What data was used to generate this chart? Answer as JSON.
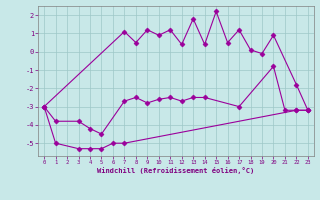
{
  "xlabel": "Windchill (Refroidissement éolien,°C)",
  "line_color": "#9b009b",
  "bg_color": "#c8e8e8",
  "grid_color": "#9ec8c8",
  "ylim": [
    -5.7,
    2.5
  ],
  "xlim": [
    -0.5,
    23.5
  ],
  "yticks": [
    -5,
    -4,
    -3,
    -2,
    -1,
    0,
    1,
    2
  ],
  "xticks": [
    0,
    1,
    2,
    3,
    4,
    5,
    6,
    7,
    8,
    9,
    10,
    11,
    12,
    13,
    14,
    15,
    16,
    17,
    18,
    19,
    20,
    21,
    22,
    23
  ],
  "line_bottom_x": [
    0,
    1,
    3,
    4,
    5,
    6,
    7,
    22,
    23
  ],
  "line_bottom_y": [
    -3.0,
    -5.0,
    -5.3,
    -5.3,
    -5.3,
    -5.0,
    -5.0,
    -3.2,
    -3.2
  ],
  "line_mid_x": [
    0,
    1,
    3,
    4,
    5,
    7,
    8,
    9,
    10,
    11,
    12,
    13,
    14,
    17,
    20,
    21,
    22,
    23
  ],
  "line_mid_y": [
    -3.0,
    -3.8,
    -3.8,
    -4.2,
    -4.5,
    -2.7,
    -2.5,
    -2.8,
    -2.6,
    -2.5,
    -2.7,
    -2.5,
    -2.5,
    -3.0,
    -0.8,
    -3.2,
    -3.2,
    -3.2
  ],
  "line_top_x": [
    0,
    7,
    8,
    9,
    10,
    11,
    12,
    13,
    14,
    15,
    16,
    17,
    18,
    19,
    20,
    22,
    23
  ],
  "line_top_y": [
    -3.0,
    1.1,
    0.5,
    1.2,
    0.9,
    1.2,
    0.4,
    1.8,
    0.4,
    2.2,
    0.5,
    1.2,
    0.1,
    -0.1,
    0.9,
    -1.8,
    -3.2
  ]
}
